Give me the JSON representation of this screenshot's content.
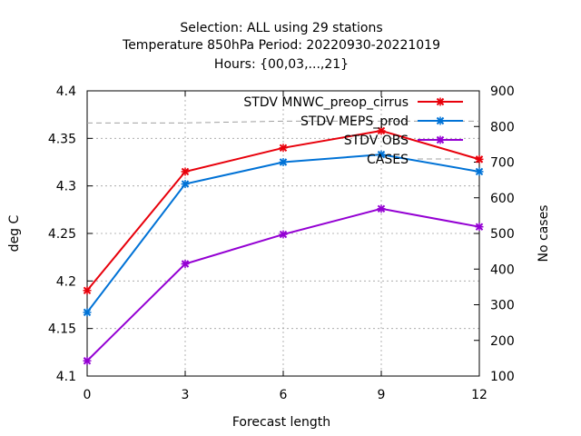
{
  "title_lines": [
    "Selection: ALL using    29 stations",
    "Temperature 850hPa   Period: 20220930-20221019",
    "Hours: {00,03,...,21}"
  ],
  "chart_data": {
    "type": "line",
    "xlabel": "Forecast length",
    "ylabel": "deg C",
    "y2label": "No cases",
    "x": [
      0,
      3,
      6,
      9,
      12
    ],
    "xticks": [
      "0",
      "3",
      "6",
      "9",
      "12"
    ],
    "xlim": [
      0,
      12
    ],
    "ylim": [
      4.1,
      4.4
    ],
    "yticks": [
      "4.1",
      "4.15",
      "4.2",
      "4.25",
      "4.3",
      "4.35",
      "4.4"
    ],
    "y2lim": [
      100,
      900
    ],
    "y2ticks": [
      "100",
      "200",
      "300",
      "400",
      "500",
      "600",
      "700",
      "800",
      "900"
    ],
    "grid": true,
    "legend_position": "top-right",
    "series": [
      {
        "name": "STDV MNWC_preop_cirrus",
        "axis": "y",
        "color": "#e8000b",
        "marker": "x",
        "values": [
          4.19,
          4.315,
          4.34,
          4.358,
          4.328
        ]
      },
      {
        "name": "STDV MEPS_prod",
        "axis": "y",
        "color": "#0072d6",
        "marker": "x",
        "values": [
          4.167,
          4.302,
          4.325,
          4.333,
          4.315
        ]
      },
      {
        "name": "STDV OBS",
        "axis": "y",
        "color": "#9400d3",
        "marker": "x",
        "values": [
          4.116,
          4.218,
          4.249,
          4.276,
          4.257
        ]
      },
      {
        "name": "CASES",
        "axis": "y2",
        "color": "#a0a0a0",
        "dashed": true,
        "values": [
          810,
          810,
          815,
          815,
          815
        ]
      }
    ]
  }
}
